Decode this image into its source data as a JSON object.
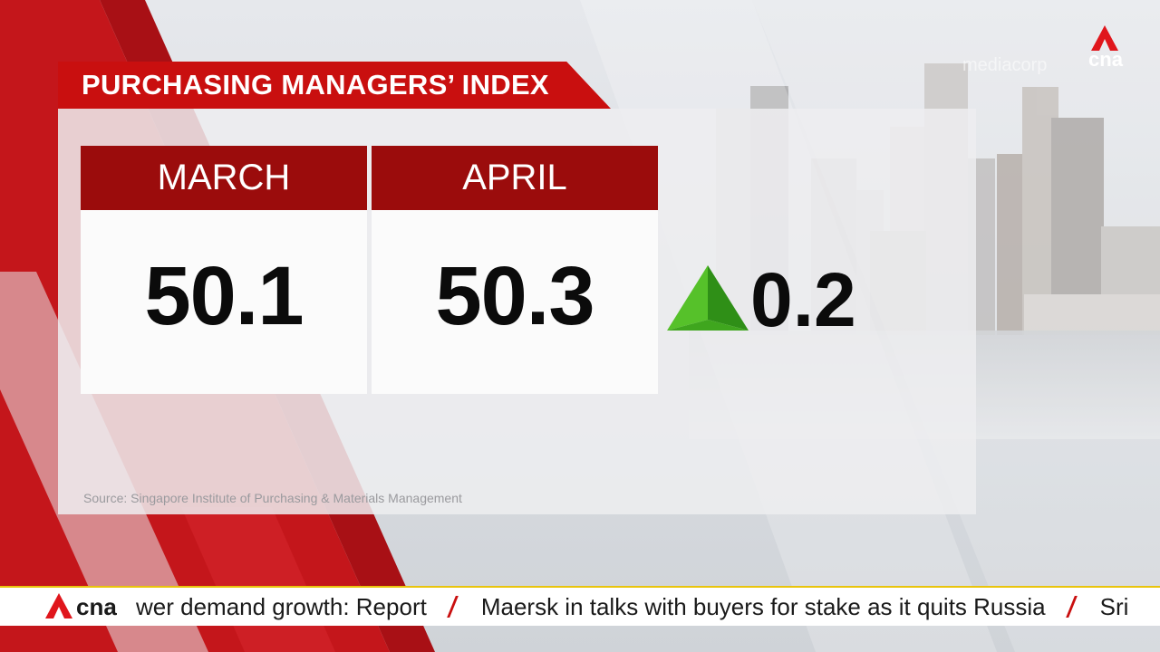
{
  "graphic": {
    "title": "PURCHASING MANAGERS’ INDEX",
    "months": [
      {
        "label": "MARCH",
        "value": "50.1"
      },
      {
        "label": "APRIL",
        "value": "50.3"
      }
    ],
    "change": {
      "direction": "up",
      "value": "0.2",
      "arrow_icon": "up-arrow-icon"
    },
    "source": "Source: Singapore Institute of Purchasing & Materials Management"
  },
  "watermark": "mediacorp",
  "logo": {
    "text": "cna",
    "icon": "cna-logo-icon"
  },
  "ticker": {
    "items": [
      "wer demand growth: Report",
      "Maersk in talks with buyers for stake as it quits Russia",
      "Sri"
    ]
  },
  "colors": {
    "brand_red": "#c90f0f",
    "header_red": "#9b0c0c",
    "arrow_green": "#3fa61e",
    "ticker_accent": "#e9c40c"
  }
}
